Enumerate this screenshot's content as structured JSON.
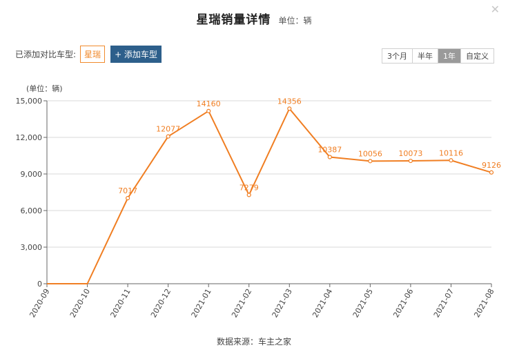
{
  "header": {
    "title": "星瑞销量详情",
    "unit": "单位：辆",
    "close_icon": "close-icon"
  },
  "compare": {
    "label": "已添加对比车型:",
    "models": [
      "星瑞"
    ],
    "add_label": "+ 添加车型"
  },
  "ranges": {
    "options": [
      "3个月",
      "半年",
      "1年",
      "自定义"
    ],
    "selected": "1年"
  },
  "footer": {
    "source": "数据来源：车主之家"
  },
  "colors": {
    "series": "#f07e22",
    "grid": "#d8d8d8",
    "axis": "#666666"
  },
  "chart_data": {
    "type": "line",
    "ylabel": "(单位：辆)",
    "ylim": [
      0,
      15000
    ],
    "yticks": [
      "0",
      "3,000",
      "6,000",
      "9,000",
      "12,000",
      "15,000"
    ],
    "ytick_values": [
      0,
      3000,
      6000,
      9000,
      12000,
      15000
    ],
    "grid": true,
    "categories": [
      "2020-09",
      "2020-10",
      "2020-11",
      "2020-12",
      "2021-01",
      "2021-02",
      "2021-03",
      "2021-04",
      "2021-05",
      "2021-06",
      "2021-07",
      "2021-08"
    ],
    "values": [
      0,
      0,
      7017,
      12077,
      14160,
      7279,
      14356,
      10387,
      10056,
      10073,
      10116,
      9126
    ],
    "data_labels": [
      "",
      "",
      "7017",
      "12077",
      "14160",
      "7279",
      "14356",
      "10387",
      "10056",
      "10073",
      "10116",
      "9126"
    ]
  }
}
